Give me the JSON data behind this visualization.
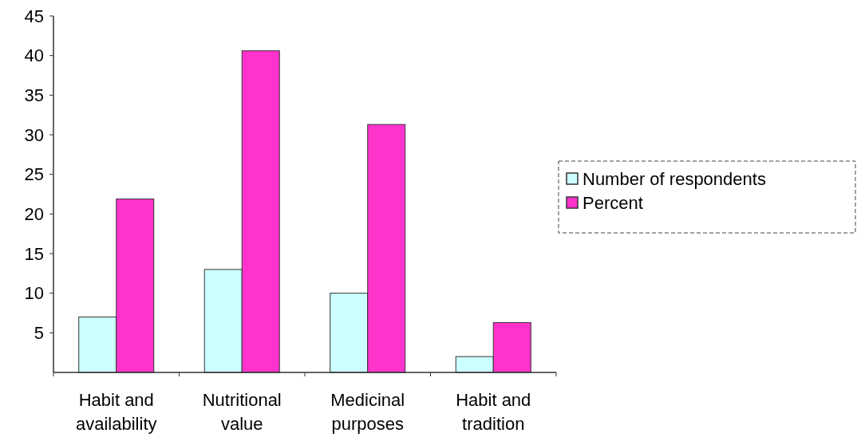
{
  "chart_data": {
    "type": "bar",
    "categories": [
      "Habit and availability",
      "Nutritional value",
      "Medicinal purposes",
      "Habit and tradition"
    ],
    "series": [
      {
        "name": "Number of respondents",
        "color": "#ccffff",
        "values": [
          7,
          13,
          10,
          2
        ]
      },
      {
        "name": "Percent",
        "color": "#ff33cc",
        "values": [
          21.9,
          40.6,
          31.3,
          6.3
        ]
      }
    ],
    "ylim": [
      0,
      45
    ],
    "yticks": [
      5,
      10,
      15,
      20,
      25,
      30,
      35,
      40,
      45
    ],
    "grid": false,
    "legend": "right"
  }
}
